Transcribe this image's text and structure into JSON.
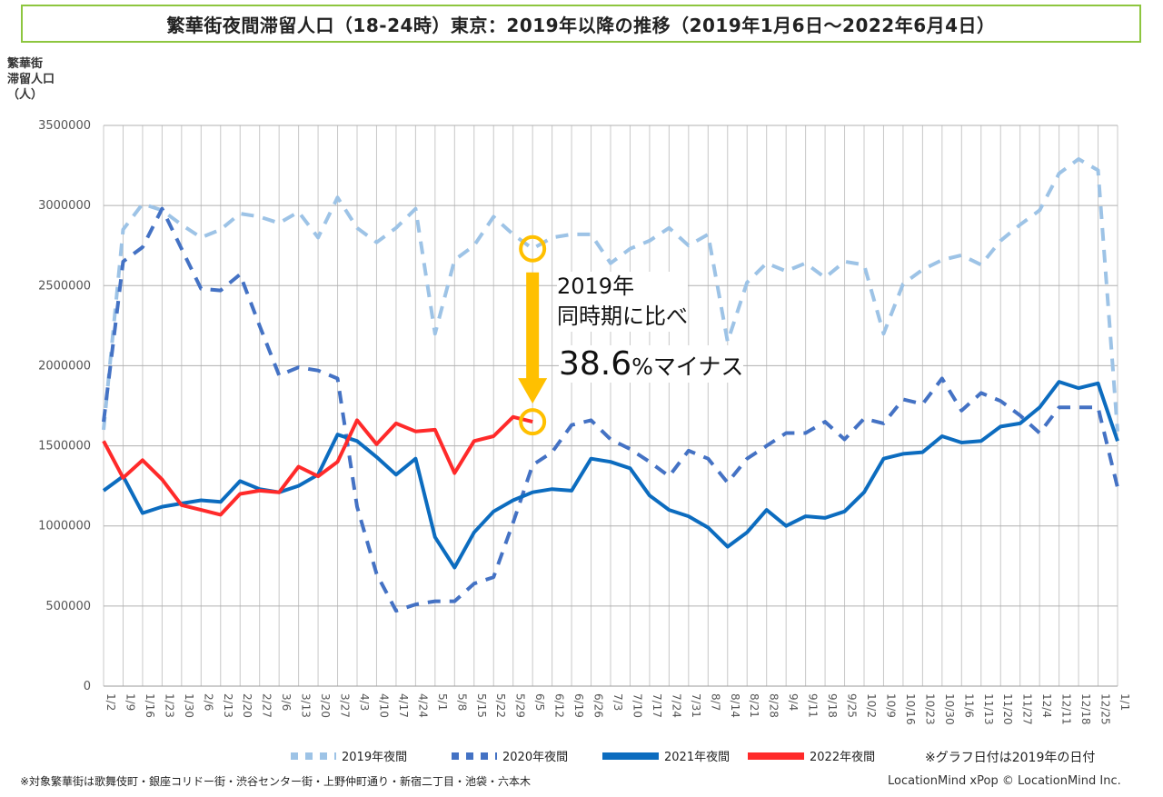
{
  "title": "繁華街夜間滞留人口（18-24時）東京：2019年以降の推移（2019年1月6日～2022年6月4日）",
  "ylabel_lines": [
    "繁華街",
    "滞留人口",
    "（人）"
  ],
  "annotation": {
    "line1": "2019年",
    "line2": "同時期に比べ",
    "pct": "38.6",
    "pct_suffix": "%マイナス"
  },
  "note_right": "※グラフ日付は2019年の日付",
  "note_left": "※対象繁華街は歌舞伎町・銀座コリドー街・渋谷センター街・上野仲町通り・新宿二丁目・池袋・六本木",
  "credit": "LocationMind xPop © LocationMind Inc.",
  "chart_data": {
    "type": "line",
    "title": "繁華街夜間滞留人口（18-24時）東京：2019年以降の推移（2019年1月6日～2022年6月4日）",
    "ylabel": "繁華街滞留人口（人）",
    "ylim": [
      0,
      3500000
    ],
    "yticks": [
      0,
      500000,
      1000000,
      1500000,
      2000000,
      2500000,
      3000000,
      3500000
    ],
    "x": [
      "1/2",
      "1/9",
      "1/16",
      "1/23",
      "1/30",
      "2/6",
      "2/13",
      "2/20",
      "2/27",
      "3/6",
      "3/13",
      "3/20",
      "3/27",
      "4/3",
      "4/10",
      "4/17",
      "4/24",
      "5/1",
      "5/8",
      "5/15",
      "5/22",
      "5/29",
      "6/5",
      "6/12",
      "6/19",
      "6/26",
      "7/3",
      "7/10",
      "7/17",
      "7/24",
      "7/31",
      "8/7",
      "8/14",
      "8/21",
      "8/28",
      "9/4",
      "9/11",
      "9/18",
      "9/25",
      "10/2",
      "10/9",
      "10/16",
      "10/23",
      "10/30",
      "11/6",
      "11/13",
      "11/20",
      "11/27",
      "12/4",
      "12/11",
      "12/18",
      "12/25",
      "1/1"
    ],
    "grid": true,
    "legend_position": "bottom",
    "series": [
      {
        "name": "2019年夜間",
        "color": "#9dc3e6",
        "style": "dashed-light",
        "values": [
          1600000,
          2850000,
          3010000,
          2970000,
          2880000,
          2800000,
          2850000,
          2950000,
          2930000,
          2890000,
          2960000,
          2800000,
          3050000,
          2860000,
          2770000,
          2860000,
          2980000,
          2200000,
          2660000,
          2750000,
          2930000,
          2820000,
          2730000,
          2800000,
          2820000,
          2820000,
          2640000,
          2730000,
          2780000,
          2860000,
          2750000,
          2820000,
          2150000,
          2520000,
          2640000,
          2590000,
          2640000,
          2550000,
          2650000,
          2630000,
          2200000,
          2510000,
          2600000,
          2660000,
          2690000,
          2630000,
          2780000,
          2880000,
          2970000,
          3200000,
          3290000,
          3220000,
          1590000
        ]
      },
      {
        "name": "2020年夜間",
        "color": "#4472c4",
        "style": "dashed",
        "values": [
          1650000,
          2650000,
          2740000,
          2980000,
          2730000,
          2480000,
          2470000,
          2570000,
          2250000,
          1940000,
          1990000,
          1970000,
          1920000,
          1120000,
          700000,
          470000,
          510000,
          530000,
          530000,
          640000,
          680000,
          1020000,
          1380000,
          1460000,
          1630000,
          1660000,
          1540000,
          1480000,
          1400000,
          1310000,
          1470000,
          1420000,
          1270000,
          1420000,
          1500000,
          1580000,
          1580000,
          1650000,
          1540000,
          1670000,
          1640000,
          1790000,
          1760000,
          1920000,
          1720000,
          1830000,
          1780000,
          1690000,
          1580000,
          1740000,
          1740000,
          1740000,
          1240000
        ]
      },
      {
        "name": "2021年夜間",
        "color": "#0c6cbf",
        "style": "solid",
        "values": [
          1220000,
          1310000,
          1080000,
          1120000,
          1140000,
          1160000,
          1150000,
          1280000,
          1230000,
          1210000,
          1250000,
          1320000,
          1570000,
          1530000,
          1430000,
          1320000,
          1420000,
          930000,
          740000,
          960000,
          1090000,
          1160000,
          1210000,
          1230000,
          1220000,
          1420000,
          1400000,
          1360000,
          1190000,
          1100000,
          1060000,
          990000,
          870000,
          960000,
          1100000,
          1000000,
          1060000,
          1050000,
          1090000,
          1210000,
          1420000,
          1450000,
          1460000,
          1560000,
          1520000,
          1530000,
          1620000,
          1640000,
          1740000,
          1900000,
          1860000,
          1890000,
          1530000
        ]
      },
      {
        "name": "2022年夜間",
        "color": "#ff2a2a",
        "style": "solid",
        "values": [
          1530000,
          1300000,
          1410000,
          1290000,
          1130000,
          1100000,
          1070000,
          1200000,
          1220000,
          1210000,
          1370000,
          1310000,
          1400000,
          1660000,
          1510000,
          1640000,
          1590000,
          1600000,
          1330000,
          1530000,
          1560000,
          1680000,
          1650000,
          null,
          null,
          null,
          null,
          null,
          null,
          null,
          null,
          null,
          null,
          null,
          null,
          null,
          null,
          null,
          null,
          null,
          null,
          null,
          null,
          null,
          null,
          null,
          null,
          null,
          null,
          null,
          null,
          null,
          null
        ]
      }
    ],
    "annotations": [
      {
        "text": "2019年 同時期に比べ 38.6%マイナス",
        "from_x": "6/5",
        "from_y": 2730000,
        "to_x": "6/5",
        "to_y": 1650000,
        "color": "#ffc000"
      }
    ]
  }
}
